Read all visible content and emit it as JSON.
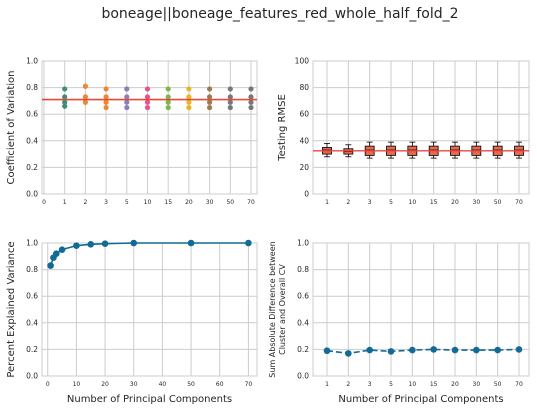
{
  "suptitle": "boneage||boneage_features_red_whole_half_fold_2",
  "colors": {
    "mean_line": "#e8483b",
    "box_face": "#e8674f",
    "line_blue": "#126b94",
    "cv_points": [
      "#3d8f7d",
      "#3d8f7d",
      "#ef8632",
      "#ef8632",
      "#8c7fb5",
      "#e9538d",
      "#7fb64a",
      "#e8b624",
      "#9b7a4e",
      "#777777",
      "#777777"
    ]
  },
  "chart_data": [
    {
      "type": "scatter",
      "ylabel": "Coefficient of Variation",
      "xlabel": "",
      "categories": [
        "0",
        "1",
        "2",
        "3",
        "5",
        "10",
        "15",
        "20",
        "30",
        "50",
        "70"
      ],
      "ylim": [
        0,
        1
      ],
      "yticks": [
        "0.0",
        "0.2",
        "0.4",
        "0.6",
        "0.8",
        "1.0"
      ],
      "mean_line": 0.71,
      "points": [
        {
          "x": "1",
          "y": [
            0.79,
            0.73,
            0.69,
            0.66
          ]
        },
        {
          "x": "2",
          "y": [
            0.81,
            0.73,
            0.69
          ]
        },
        {
          "x": "3",
          "y": [
            0.79,
            0.73,
            0.69,
            0.65
          ]
        },
        {
          "x": "5",
          "y": [
            0.79,
            0.73,
            0.69,
            0.65
          ]
        },
        {
          "x": "10",
          "y": [
            0.79,
            0.73,
            0.69,
            0.65
          ]
        },
        {
          "x": "15",
          "y": [
            0.79,
            0.73,
            0.69,
            0.65
          ]
        },
        {
          "x": "20",
          "y": [
            0.79,
            0.73,
            0.69,
            0.65
          ]
        },
        {
          "x": "30",
          "y": [
            0.79,
            0.73,
            0.69,
            0.65
          ]
        },
        {
          "x": "50",
          "y": [
            0.79,
            0.73,
            0.69,
            0.65
          ]
        },
        {
          "x": "70",
          "y": [
            0.79,
            0.73,
            0.69,
            0.65
          ]
        }
      ]
    },
    {
      "type": "box",
      "ylabel": "Testing RMSE",
      "xlabel": "",
      "categories": [
        "1",
        "2",
        "3",
        "5",
        "10",
        "15",
        "20",
        "30",
        "50",
        "70"
      ],
      "ylim": [
        0,
        100
      ],
      "yticks": [
        "0",
        "20",
        "40",
        "60",
        "80",
        "100"
      ],
      "mean_line": 32.5,
      "boxes": [
        {
          "x": "1",
          "whislo": 28,
          "q1": 30,
          "med": 33,
          "q3": 35,
          "whishi": 38
        },
        {
          "x": "2",
          "whislo": 28,
          "q1": 30,
          "med": 32,
          "q3": 34,
          "whishi": 37
        },
        {
          "x": "3",
          "whislo": 27,
          "q1": 29,
          "med": 33,
          "q3": 36,
          "whishi": 39
        },
        {
          "x": "5",
          "whislo": 27,
          "q1": 29,
          "med": 33,
          "q3": 36,
          "whishi": 39
        },
        {
          "x": "10",
          "whislo": 27,
          "q1": 29,
          "med": 33,
          "q3": 36,
          "whishi": 39
        },
        {
          "x": "15",
          "whislo": 27,
          "q1": 29,
          "med": 33,
          "q3": 36,
          "whishi": 39
        },
        {
          "x": "20",
          "whislo": 27,
          "q1": 29,
          "med": 33,
          "q3": 36,
          "whishi": 39
        },
        {
          "x": "30",
          "whislo": 27,
          "q1": 29,
          "med": 33,
          "q3": 36,
          "whishi": 39
        },
        {
          "x": "50",
          "whislo": 27,
          "q1": 29,
          "med": 33,
          "q3": 36,
          "whishi": 39
        },
        {
          "x": "70",
          "whislo": 27,
          "q1": 29,
          "med": 33,
          "q3": 36,
          "whishi": 39
        }
      ]
    },
    {
      "type": "line",
      "ylabel": "Percent Explained Variance",
      "xlabel": "Number of Principal Components",
      "xlim": [
        -2,
        73
      ],
      "xticks": [
        0,
        10,
        20,
        30,
        40,
        50,
        60,
        70
      ],
      "ylim": [
        0,
        1
      ],
      "yticks": [
        "0.0",
        "0.2",
        "0.4",
        "0.6",
        "0.8",
        "1.0"
      ],
      "x": [
        1,
        2,
        3,
        5,
        10,
        15,
        20,
        30,
        50,
        70
      ],
      "y": [
        0.83,
        0.89,
        0.92,
        0.95,
        0.98,
        0.99,
        0.995,
        1.0,
        1.0,
        1.0
      ]
    },
    {
      "type": "line",
      "ylabel": "Sum Absolute Difference between Cluster and Overall CV",
      "ylabel_lines": [
        "Sum Absolute Difference between",
        "Cluster and Overall CV"
      ],
      "xlabel": "Number of Principal Components",
      "categories": [
        "1",
        "2",
        "3",
        "5",
        "10",
        "15",
        "20",
        "30",
        "50",
        "70"
      ],
      "ylim": [
        0,
        1
      ],
      "yticks": [
        "0.0",
        "0.2",
        "0.4",
        "0.6",
        "0.8",
        "1.0"
      ],
      "y": [
        0.19,
        0.17,
        0.195,
        0.185,
        0.195,
        0.2,
        0.195,
        0.195,
        0.195,
        0.2
      ]
    }
  ]
}
